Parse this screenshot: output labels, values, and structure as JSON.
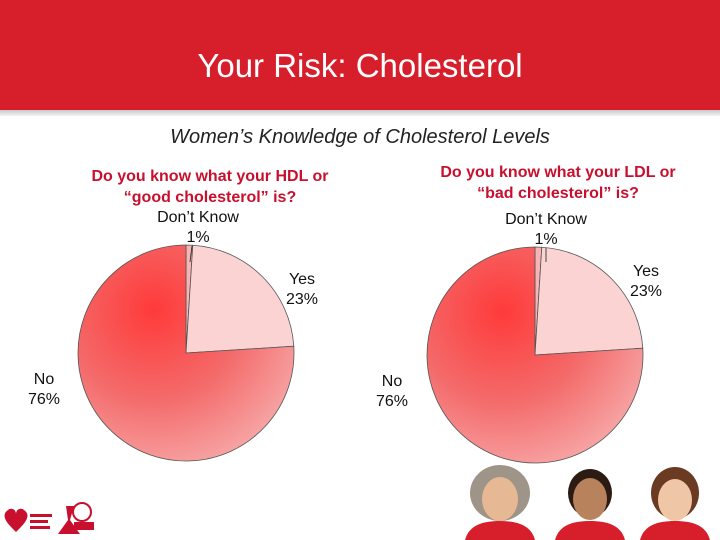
{
  "header": {
    "title": "Your Risk: Cholesterol"
  },
  "colors": {
    "header": "#d71f2c",
    "pie_fill": "#f25c5c",
    "pie_light": "#fbd3d3",
    "question_text": "#c8102e"
  },
  "chart_data": [
    {
      "type": "pie",
      "title": "Women’s Knowledge of Cholesterol Levels",
      "question_lines": [
        "Do you know what your HDL or",
        "“good cholesterol” is?"
      ],
      "slices": [
        {
          "label": "Don’t Know",
          "value_label": "1%",
          "value": 1
        },
        {
          "label": "Yes",
          "value_label": "23%",
          "value": 23
        },
        {
          "label": "No",
          "value_label": "76%",
          "value": 76
        }
      ]
    },
    {
      "type": "pie",
      "question_lines": [
        "Do you know what your LDL or",
        "“bad cholesterol” is?"
      ],
      "slices": [
        {
          "label": "Don’t Know",
          "value_label": "1%",
          "value": 1
        },
        {
          "label": "Yes",
          "value_label": "23%",
          "value": 23
        },
        {
          "label": "No",
          "value_label": "76%",
          "value": 76
        }
      ]
    }
  ],
  "footer": {
    "logo_icons": [
      "heart-torch-icon",
      "red-dress-icon"
    ]
  }
}
